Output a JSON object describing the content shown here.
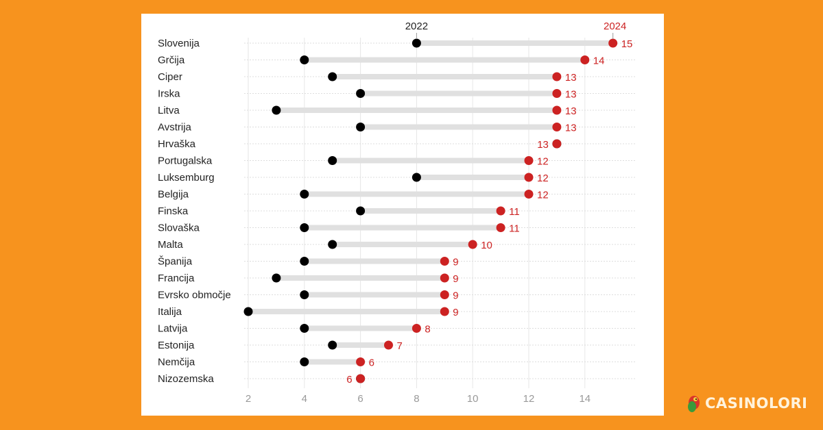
{
  "chart_data": {
    "type": "dumbbell",
    "series": [
      {
        "name": "2022",
        "color": "#000000"
      },
      {
        "name": "2024",
        "color": "#CC2222"
      }
    ],
    "categories": [
      "Slovenija",
      "Grčija",
      "Ciper",
      "Irska",
      "Litva",
      "Avstrija",
      "Hrvaška",
      "Portugalska",
      "Luksemburg",
      "Belgija",
      "Finska",
      "Slovaška",
      "Malta",
      "Španija",
      "Francija",
      "Evrsko območje",
      "Italija",
      "Latvija",
      "Estonija",
      "Nemčija",
      "Nizozemska"
    ],
    "values_2022": [
      8,
      4,
      5,
      6,
      3,
      6,
      13,
      5,
      8,
      4,
      6,
      4,
      5,
      4,
      3,
      4,
      2,
      4,
      5,
      4,
      6
    ],
    "values_2024": [
      15,
      14,
      13,
      13,
      13,
      13,
      13,
      12,
      12,
      12,
      11,
      11,
      10,
      9,
      9,
      9,
      9,
      8,
      7,
      6,
      6
    ],
    "x_ticks": [
      2,
      4,
      6,
      8,
      10,
      12,
      14
    ],
    "xlim": [
      2,
      15
    ],
    "grid": true,
    "bar_color": "#E0E0E0"
  },
  "branding": {
    "logo_text": "CASINOLORI"
  },
  "colors": {
    "background": "#F7931E"
  }
}
